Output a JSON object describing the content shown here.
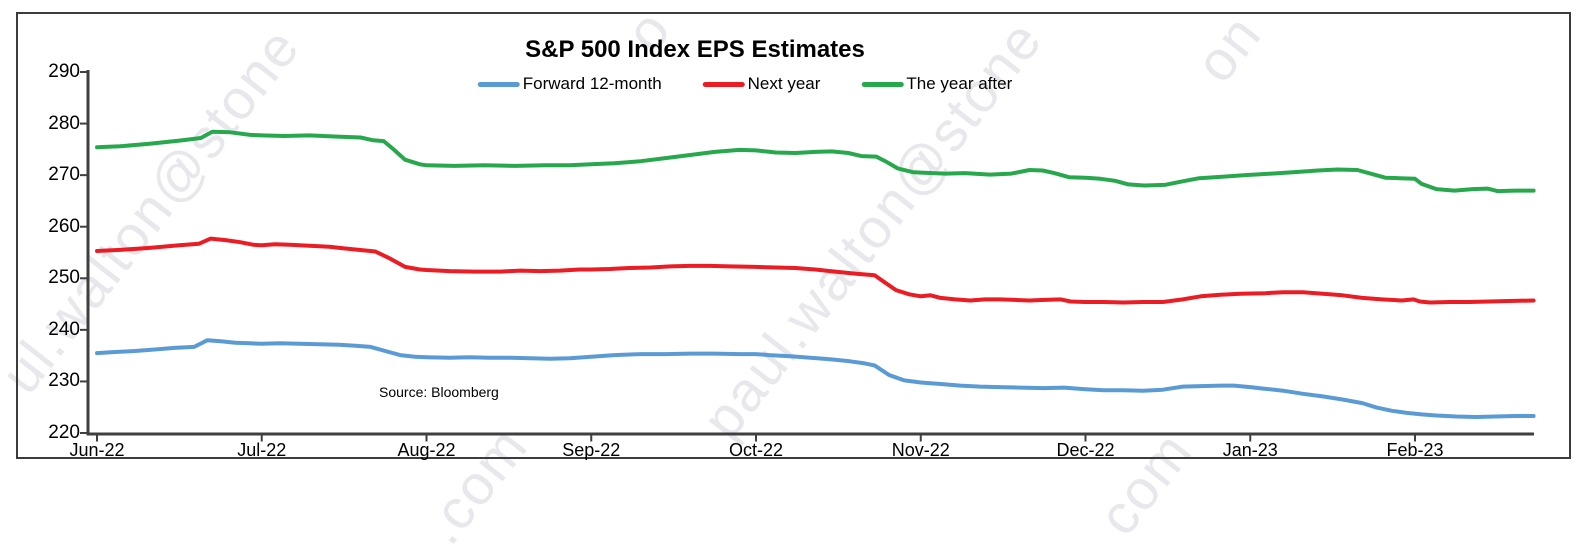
{
  "chart_data": {
    "type": "line",
    "title": "S&P 500 Index EPS Estimates",
    "source_note": "Source: Bloomberg",
    "grid": "off",
    "legend_position": "top-center",
    "axis_color": "#3F3F3F",
    "x_axis": {
      "categories": [
        "Jun-22",
        "Jul-22",
        "Aug-22",
        "Sep-22",
        "Oct-22",
        "Nov-22",
        "Dec-22",
        "Jan-23",
        "Feb-23"
      ]
    },
    "y_axis": {
      "min": 220,
      "max": 290,
      "ticks": [
        220,
        230,
        240,
        250,
        260,
        270,
        280,
        290
      ]
    },
    "series": [
      {
        "name": "Forward 12-month",
        "color": "#5B9BD5",
        "points": [
          [
            0,
            235.5
          ],
          [
            0.11,
            235.7
          ],
          [
            0.23,
            235.9
          ],
          [
            0.35,
            236.2
          ],
          [
            0.47,
            236.5
          ],
          [
            0.59,
            236.7
          ],
          [
            0.67,
            238.0
          ],
          [
            0.75,
            237.8
          ],
          [
            0.84,
            237.5
          ],
          [
            0.93,
            237.4
          ],
          [
            1,
            237.3
          ],
          [
            1.11,
            237.4
          ],
          [
            1.23,
            237.3
          ],
          [
            1.35,
            237.2
          ],
          [
            1.47,
            237.1
          ],
          [
            1.57,
            236.9
          ],
          [
            1.66,
            236.7
          ],
          [
            1.75,
            235.9
          ],
          [
            1.84,
            235.1
          ],
          [
            1.93,
            234.8
          ],
          [
            2,
            234.7
          ],
          [
            2.14,
            234.6
          ],
          [
            2.26,
            234.7
          ],
          [
            2.38,
            234.6
          ],
          [
            2.51,
            234.6
          ],
          [
            2.63,
            234.5
          ],
          [
            2.75,
            234.4
          ],
          [
            2.87,
            234.5
          ],
          [
            3,
            234.8
          ],
          [
            3.14,
            235.1
          ],
          [
            3.3,
            235.3
          ],
          [
            3.45,
            235.3
          ],
          [
            3.6,
            235.4
          ],
          [
            3.75,
            235.4
          ],
          [
            3.9,
            235.3
          ],
          [
            4,
            235.3
          ],
          [
            4.08,
            235.1
          ],
          [
            4.21,
            234.9
          ],
          [
            4.33,
            234.6
          ],
          [
            4.45,
            234.3
          ],
          [
            4.57,
            233.9
          ],
          [
            4.66,
            233.5
          ],
          [
            4.72,
            233.1
          ],
          [
            4.81,
            231.2
          ],
          [
            4.9,
            230.2
          ],
          [
            5,
            229.8
          ],
          [
            5.12,
            229.5
          ],
          [
            5.24,
            229.2
          ],
          [
            5.36,
            229.0
          ],
          [
            5.48,
            228.9
          ],
          [
            5.6,
            228.8
          ],
          [
            5.75,
            228.7
          ],
          [
            5.87,
            228.8
          ],
          [
            6,
            228.5
          ],
          [
            6.11,
            228.3
          ],
          [
            6.23,
            228.3
          ],
          [
            6.35,
            228.2
          ],
          [
            6.47,
            228.4
          ],
          [
            6.59,
            229.0
          ],
          [
            6.7,
            229.1
          ],
          [
            6.82,
            229.2
          ],
          [
            6.9,
            229.2
          ],
          [
            7,
            228.9
          ],
          [
            7.08,
            228.6
          ],
          [
            7.2,
            228.2
          ],
          [
            7.32,
            227.6
          ],
          [
            7.44,
            227.1
          ],
          [
            7.56,
            226.5
          ],
          [
            7.68,
            225.8
          ],
          [
            7.77,
            224.9
          ],
          [
            7.86,
            224.3
          ],
          [
            7.95,
            223.9
          ],
          [
            8.04,
            223.6
          ],
          [
            8.13,
            223.4
          ],
          [
            8.25,
            223.2
          ],
          [
            8.37,
            223.1
          ],
          [
            8.49,
            223.2
          ],
          [
            8.61,
            223.3
          ],
          [
            8.72,
            223.3
          ]
        ]
      },
      {
        "name": "Next year",
        "color": "#EC1C24",
        "points": [
          [
            0,
            255.3
          ],
          [
            0.14,
            255.5
          ],
          [
            0.32,
            255.9
          ],
          [
            0.5,
            256.4
          ],
          [
            0.62,
            256.7
          ],
          [
            0.69,
            257.7
          ],
          [
            0.78,
            257.4
          ],
          [
            0.87,
            257.0
          ],
          [
            0.95,
            256.5
          ],
          [
            1,
            256.4
          ],
          [
            1.08,
            256.6
          ],
          [
            1.17,
            256.5
          ],
          [
            1.29,
            256.3
          ],
          [
            1.41,
            256.1
          ],
          [
            1.5,
            255.8
          ],
          [
            1.59,
            255.5
          ],
          [
            1.69,
            255.2
          ],
          [
            1.78,
            253.8
          ],
          [
            1.87,
            252.2
          ],
          [
            1.96,
            251.7
          ],
          [
            2,
            251.6
          ],
          [
            2.14,
            251.4
          ],
          [
            2.29,
            251.3
          ],
          [
            2.45,
            251.3
          ],
          [
            2.57,
            251.5
          ],
          [
            2.69,
            251.4
          ],
          [
            2.81,
            251.5
          ],
          [
            2.93,
            251.7
          ],
          [
            3,
            251.7
          ],
          [
            3.11,
            251.8
          ],
          [
            3.23,
            252.0
          ],
          [
            3.36,
            252.1
          ],
          [
            3.48,
            252.3
          ],
          [
            3.6,
            252.4
          ],
          [
            3.72,
            252.4
          ],
          [
            3.84,
            252.3
          ],
          [
            4,
            252.2
          ],
          [
            4.12,
            252.1
          ],
          [
            4.24,
            252.0
          ],
          [
            4.36,
            251.7
          ],
          [
            4.48,
            251.3
          ],
          [
            4.6,
            250.9
          ],
          [
            4.72,
            250.6
          ],
          [
            4.79,
            249.0
          ],
          [
            4.85,
            247.7
          ],
          [
            4.93,
            246.9
          ],
          [
            5,
            246.5
          ],
          [
            5.06,
            246.7
          ],
          [
            5.12,
            246.2
          ],
          [
            5.21,
            245.9
          ],
          [
            5.3,
            245.7
          ],
          [
            5.39,
            245.9
          ],
          [
            5.48,
            245.9
          ],
          [
            5.57,
            245.8
          ],
          [
            5.66,
            245.7
          ],
          [
            5.75,
            245.8
          ],
          [
            5.85,
            245.9
          ],
          [
            5.91,
            245.5
          ],
          [
            6,
            245.4
          ],
          [
            6.11,
            245.4
          ],
          [
            6.23,
            245.3
          ],
          [
            6.35,
            245.4
          ],
          [
            6.47,
            245.4
          ],
          [
            6.59,
            245.9
          ],
          [
            6.7,
            246.5
          ],
          [
            6.82,
            246.8
          ],
          [
            6.94,
            247.0
          ],
          [
            7.09,
            247.1
          ],
          [
            7.2,
            247.3
          ],
          [
            7.32,
            247.3
          ],
          [
            7.44,
            247.0
          ],
          [
            7.56,
            246.7
          ],
          [
            7.68,
            246.2
          ],
          [
            7.8,
            245.9
          ],
          [
            7.92,
            245.7
          ],
          [
            7.99,
            245.9
          ],
          [
            8.03,
            245.5
          ],
          [
            8.09,
            245.3
          ],
          [
            8.21,
            245.4
          ],
          [
            8.33,
            245.4
          ],
          [
            8.45,
            245.5
          ],
          [
            8.57,
            245.6
          ],
          [
            8.72,
            245.7
          ]
        ]
      },
      {
        "name": "The year after",
        "color": "#28A84D",
        "points": [
          [
            0,
            275.4
          ],
          [
            0.14,
            275.6
          ],
          [
            0.32,
            276.1
          ],
          [
            0.5,
            276.7
          ],
          [
            0.63,
            277.2
          ],
          [
            0.7,
            278.4
          ],
          [
            0.81,
            278.3
          ],
          [
            0.93,
            277.8
          ],
          [
            1,
            277.7
          ],
          [
            1.14,
            277.6
          ],
          [
            1.29,
            277.7
          ],
          [
            1.44,
            277.5
          ],
          [
            1.6,
            277.3
          ],
          [
            1.67,
            276.8
          ],
          [
            1.74,
            276.6
          ],
          [
            1.8,
            275.0
          ],
          [
            1.87,
            273.0
          ],
          [
            1.96,
            272.1
          ],
          [
            2,
            271.9
          ],
          [
            2.17,
            271.8
          ],
          [
            2.35,
            271.9
          ],
          [
            2.54,
            271.8
          ],
          [
            2.72,
            271.9
          ],
          [
            2.87,
            271.9
          ],
          [
            3,
            272.1
          ],
          [
            3.14,
            272.3
          ],
          [
            3.3,
            272.7
          ],
          [
            3.45,
            273.3
          ],
          [
            3.6,
            273.9
          ],
          [
            3.75,
            274.5
          ],
          [
            3.9,
            274.9
          ],
          [
            4,
            274.8
          ],
          [
            4.12,
            274.4
          ],
          [
            4.24,
            274.3
          ],
          [
            4.36,
            274.5
          ],
          [
            4.46,
            274.6
          ],
          [
            4.56,
            274.3
          ],
          [
            4.64,
            273.7
          ],
          [
            4.73,
            273.6
          ],
          [
            4.79,
            272.6
          ],
          [
            4.86,
            271.3
          ],
          [
            4.95,
            270.6
          ],
          [
            5,
            270.5
          ],
          [
            5.15,
            270.3
          ],
          [
            5.27,
            270.4
          ],
          [
            5.42,
            270.1
          ],
          [
            5.55,
            270.3
          ],
          [
            5.66,
            271.0
          ],
          [
            5.74,
            270.9
          ],
          [
            5.81,
            270.4
          ],
          [
            5.9,
            269.6
          ],
          [
            6,
            269.5
          ],
          [
            6.09,
            269.3
          ],
          [
            6.18,
            268.9
          ],
          [
            6.26,
            268.2
          ],
          [
            6.36,
            268.0
          ],
          [
            6.48,
            268.1
          ],
          [
            6.59,
            268.8
          ],
          [
            6.69,
            269.4
          ],
          [
            6.83,
            269.7
          ],
          [
            6.97,
            270.0
          ],
          [
            7.13,
            270.3
          ],
          [
            7.27,
            270.6
          ],
          [
            7.41,
            270.9
          ],
          [
            7.53,
            271.1
          ],
          [
            7.65,
            271.0
          ],
          [
            7.74,
            270.2
          ],
          [
            7.82,
            269.5
          ],
          [
            7.91,
            269.4
          ],
          [
            8,
            269.3
          ],
          [
            8.04,
            268.3
          ],
          [
            8.13,
            267.3
          ],
          [
            8.24,
            267.0
          ],
          [
            8.35,
            267.3
          ],
          [
            8.44,
            267.4
          ],
          [
            8.5,
            266.9
          ],
          [
            8.61,
            267.0
          ],
          [
            8.72,
            267.0
          ]
        ]
      }
    ]
  },
  "watermark": {
    "fragments": [
      {
        "text": "ul.walton@stone"
      },
      {
        "text": "paul.walton@stone"
      },
      {
        "text": ".com"
      },
      {
        "text": "com"
      },
      {
        "text": "on"
      },
      {
        "text": "o"
      }
    ]
  }
}
